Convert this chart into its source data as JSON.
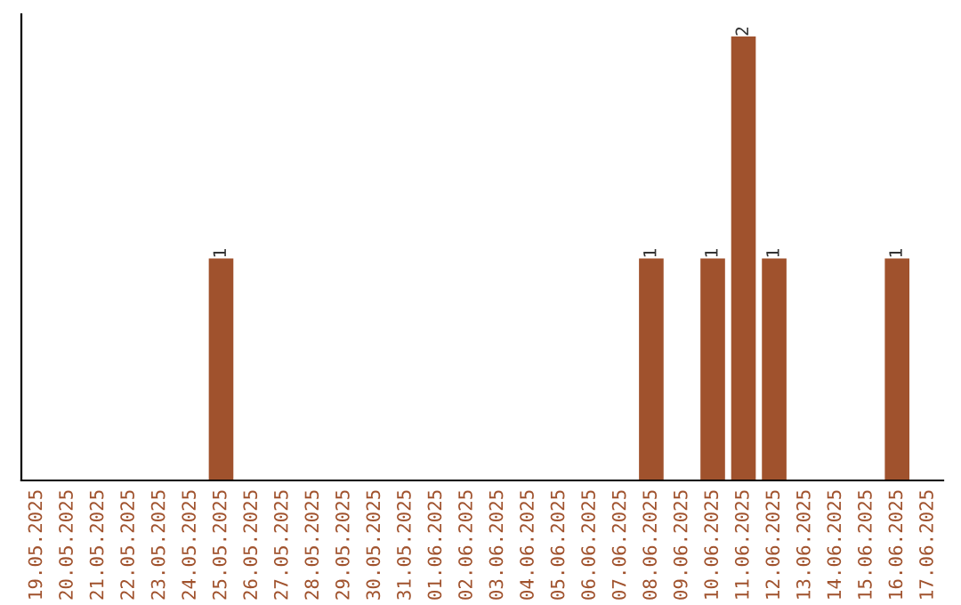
{
  "chart_data": {
    "type": "bar",
    "categories": [
      "19.05.2025",
      "20.05.2025",
      "21.05.2025",
      "22.05.2025",
      "23.05.2025",
      "24.05.2025",
      "25.05.2025",
      "26.05.2025",
      "27.05.2025",
      "28.05.2025",
      "29.05.2025",
      "30.05.2025",
      "31.05.2025",
      "01.06.2025",
      "02.06.2025",
      "03.06.2025",
      "04.06.2025",
      "05.06.2025",
      "06.06.2025",
      "07.06.2025",
      "08.06.2025",
      "09.06.2025",
      "10.06.2025",
      "11.06.2025",
      "12.06.2025",
      "13.06.2025",
      "14.06.2025",
      "15.06.2025",
      "16.06.2025",
      "17.06.2025"
    ],
    "values": [
      0,
      0,
      0,
      0,
      0,
      0,
      1,
      0,
      0,
      0,
      0,
      0,
      0,
      0,
      0,
      0,
      0,
      0,
      0,
      0,
      1,
      0,
      1,
      2,
      1,
      0,
      0,
      0,
      1,
      0
    ],
    "value_labels": [
      null,
      null,
      null,
      null,
      null,
      null,
      "1",
      null,
      null,
      null,
      null,
      null,
      null,
      null,
      null,
      null,
      null,
      null,
      null,
      null,
      "1",
      null,
      "1",
      "2",
      "1",
      null,
      null,
      null,
      "1",
      null
    ],
    "color": "#a0522d",
    "tick_labels": "x",
    "grid": false
  }
}
